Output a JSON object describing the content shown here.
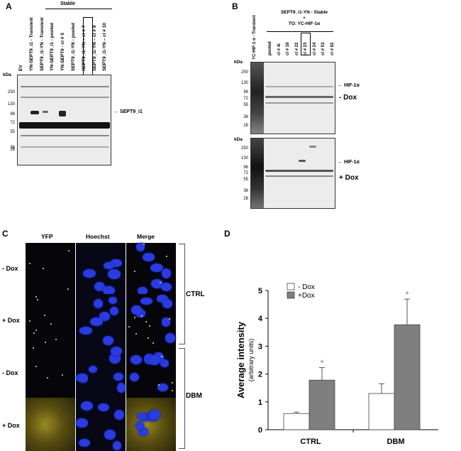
{
  "panels": {
    "a": "A",
    "b": "B",
    "c": "C",
    "d": "D"
  },
  "panel_a": {
    "stable_label": "Stable",
    "lanes": [
      "EV",
      "YN-SEPT9_i1 - Transient",
      "SEPT9_i1-YN - Transient",
      "YN-SEPT9_i1 - pooled",
      "YN-SEPT9 - cl # 5",
      "SEPT9_i1-YN - pooled",
      "SEPT9_i1-YN – cl # 7",
      "SEPT9_i1-YN – cl # 9",
      "SEPT9_i1-YN – cl # 10"
    ],
    "kda_label": "kDa",
    "markers": [
      "250",
      "130",
      "96",
      "72",
      "55",
      "36",
      "28"
    ],
    "band_label": "← SEPT9_i1"
  },
  "panel_b": {
    "header_line1": "SEPT9_i1-YN - Stable",
    "header_line2": "+",
    "header_line3": "TO: YC-HIF-1α",
    "transient_lane": "YC-HIF-1 α - Transient",
    "lanes": [
      "pooled",
      "cl # 4i",
      "cl # 19",
      "cl # 22",
      "cl # 23",
      "cl # 24",
      "cl # 53",
      "cl # 62"
    ],
    "kda_label": "kDa",
    "markers_top": [
      "250",
      "130",
      "96",
      "72",
      "55",
      "36",
      "28"
    ],
    "markers_bottom": [
      "250",
      "130",
      "96",
      "72",
      "55",
      "36",
      "28"
    ],
    "hif_label": "← HIF-1α",
    "minus_dox": "- Dox",
    "plus_dox": "+ Dox"
  },
  "panel_c": {
    "columns": [
      "YFP",
      "Hoechst",
      "Merge"
    ],
    "rows": [
      "- Dox",
      "+ Dox",
      "- Dox",
      "+ Dox"
    ],
    "groups": [
      "CTRL",
      "DBM"
    ]
  },
  "chart_data": {
    "type": "bar",
    "categories": [
      "CTRL",
      "DBM"
    ],
    "series": [
      {
        "name": "- Dox",
        "values": [
          0.58,
          1.3
        ],
        "errors": [
          0.05,
          0.35
        ],
        "color": "#ffffff"
      },
      {
        "name": "+Dox",
        "values": [
          1.78,
          3.77
        ],
        "errors": [
          0.45,
          0.92
        ],
        "color": "#7f7f7f"
      }
    ],
    "significance": [
      [
        false,
        false
      ],
      [
        true,
        true
      ]
    ],
    "significance_mark": "*",
    "ylabel": "Average  intensity",
    "ylabel_sub": "(arbitrary units)",
    "ylim": [
      0,
      5
    ],
    "yticks": [
      "0",
      "1",
      "2",
      "3",
      "4",
      "5"
    ],
    "legend_position": "top-left"
  }
}
